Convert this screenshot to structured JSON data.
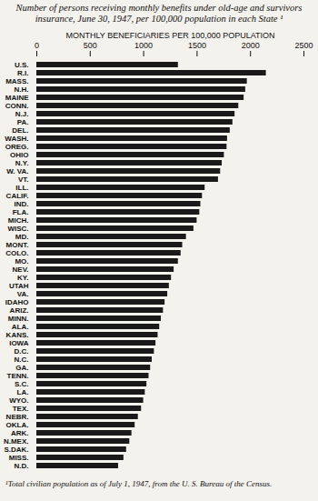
{
  "chart_data": {
    "type": "bar",
    "orientation": "horizontal",
    "title": "Number of persons receiving monthly benefits under old-age and survivors insurance, June 30, 1947, per 100,000 population in each State ¹",
    "xlabel": "MONTHLY BENEFICIARIES PER 100,000 POPULATION",
    "caption": "¹Total civilian population as of July 1, 1947, from the U. S. Bureau of the Census.",
    "categories": [
      "U.S.",
      "R.I.",
      "MASS.",
      "N.H.",
      "MAINE",
      "CONN.",
      "N.J.",
      "PA.",
      "DEL.",
      "WASH.",
      "OREG.",
      "OHIO",
      "N.Y.",
      "W. VA.",
      "VT.",
      "ILL.",
      "CALIF.",
      "IND.",
      "FLA.",
      "MICH.",
      "WISC.",
      "MD.",
      "MONT.",
      "COLO.",
      "MO.",
      "NEV.",
      "KY.",
      "UTAH",
      "VA.",
      "IDAHO",
      "ARIZ.",
      "MINN.",
      "ALA.",
      "KANS.",
      "IOWA",
      "D.C.",
      "N.C.",
      "GA.",
      "TENN.",
      "S.C.",
      "LA.",
      "WYO.",
      "TEX.",
      "NEBR.",
      "OKLA.",
      "ARK.",
      "N.MEX.",
      "S.DAK.",
      "MISS.",
      "N.D."
    ],
    "values": [
      1325,
      2148,
      1970,
      1955,
      1940,
      1890,
      1855,
      1835,
      1810,
      1785,
      1780,
      1755,
      1735,
      1720,
      1700,
      1575,
      1550,
      1535,
      1525,
      1500,
      1470,
      1400,
      1365,
      1350,
      1325,
      1285,
      1260,
      1240,
      1225,
      1200,
      1185,
      1165,
      1150,
      1135,
      1115,
      1100,
      1080,
      1065,
      1050,
      1030,
      1015,
      1000,
      980,
      950,
      920,
      890,
      870,
      840,
      815,
      765
    ],
    "color": "#1a1a1a",
    "xlim": [
      0,
      2500
    ],
    "xticks": [
      0,
      500,
      1000,
      1500,
      2000,
      2500
    ],
    "grid": false
  }
}
